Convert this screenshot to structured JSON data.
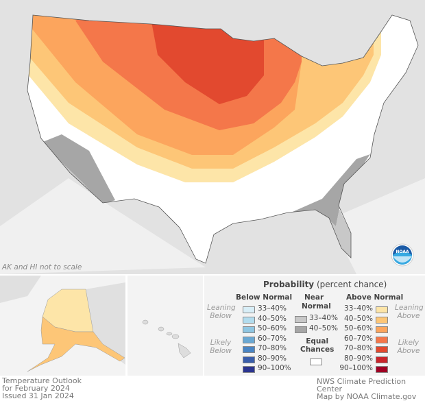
{
  "map": {
    "scale_note": "AK and HI not to scale",
    "logo": "NOAA"
  },
  "title": {
    "line1": "Temperature Outlook",
    "line2": "for February 2024",
    "line3": "Issued 31 Jan 2024"
  },
  "credit": {
    "line1": "NWS Climate Prediction Center",
    "line2": "Map by NOAA Climate.gov"
  },
  "legend": {
    "title_bold": "Probability",
    "title_rest": "(percent chance)",
    "below": {
      "header": "Below Normal",
      "leaning": [
        "Leaning",
        "Below"
      ],
      "likely": [
        "Likely",
        "Below"
      ],
      "items": [
        {
          "label": "33–40%",
          "color": "#d8eef7"
        },
        {
          "label": "40–50%",
          "color": "#b2dcee"
        },
        {
          "label": "50–60%",
          "color": "#8fc6e2"
        },
        {
          "label": "60–70%",
          "color": "#6aa8d3"
        },
        {
          "label": "70–80%",
          "color": "#4a85c4"
        },
        {
          "label": "80–90%",
          "color": "#3a5eab"
        },
        {
          "label": "90–100%",
          "color": "#2b3590"
        }
      ]
    },
    "near": {
      "header": [
        "Near",
        "Normal"
      ],
      "items": [
        {
          "label": "33–40%",
          "color": "#c8c8c8"
        },
        {
          "label": "40–50%",
          "color": "#a6a6a6"
        }
      ]
    },
    "equal": {
      "label": [
        "Equal",
        "Chances"
      ],
      "color": "#ffffff"
    },
    "above": {
      "header": "Above Normal",
      "leaning": [
        "Leaning",
        "Above"
      ],
      "likely": [
        "Likely",
        "Above"
      ],
      "items": [
        {
          "label": "33–40%",
          "color": "#fde5a8"
        },
        {
          "label": "40–50%",
          "color": "#fdc677"
        },
        {
          "label": "50–60%",
          "color": "#fca55d"
        },
        {
          "label": "60–70%",
          "color": "#f4774a"
        },
        {
          "label": "70–80%",
          "color": "#e2492f"
        },
        {
          "label": "80–90%",
          "color": "#c9252b"
        },
        {
          "label": "90–100%",
          "color": "#a00024"
        }
      ]
    }
  }
}
